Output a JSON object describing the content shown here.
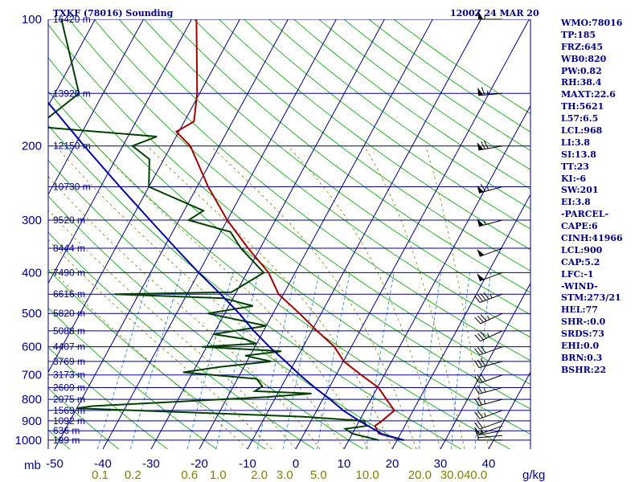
{
  "header": {
    "station": "TXKF (78016) Sounding",
    "time": "1200Z 24 MAR 20"
  },
  "indices": [
    "WMO:78016",
    "TP:185",
    "FRZ:645",
    "WB0:820",
    "PW:0.82",
    "RH:38.4",
    "MAXT:22.6",
    "TH:5621",
    "L57:6.5",
    "LCL:968",
    "LI:3.8",
    "SI:13.8",
    "TT:23",
    "KI:-6",
    "SW:201",
    "EI:3.8",
    "-PARCEL-",
    "CAPE:6",
    "CINH:41966",
    "LCL:900",
    "CAP:5.2",
    "LFC:-1",
    "-WIND-",
    "STM:273/21",
    "HEL:77",
    "SHR-:0.0",
    "SRDS:73",
    "EHI:0.0",
    "BRN:0.3",
    "BSHR:22"
  ],
  "chart_data": {
    "type": "line",
    "title": "TXKF (78016) Sounding",
    "axis_units": {
      "pressure": "mb",
      "mixing_ratio": "g/kg"
    },
    "pressure_ticks": [
      "100",
      "200",
      "300",
      "400",
      "500",
      "600",
      "700",
      "800",
      "900",
      "1000"
    ],
    "pressure_values": [
      100,
      200,
      300,
      400,
      500,
      600,
      700,
      800,
      900,
      1000
    ],
    "temperature_ticks": [
      "-50",
      "-40",
      "-30",
      "-20",
      "-10",
      "0",
      "10",
      "20",
      "30",
      "40"
    ],
    "temperature_values": [
      -50,
      -40,
      -30,
      -20,
      -10,
      0,
      10,
      20,
      30,
      40
    ],
    "mixing_ratio_ticks": [
      "0.1",
      "0.2",
      "0.6",
      "1.0",
      "2.0",
      "3.0",
      "5.0",
      "10.0",
      "20.0",
      "30.0",
      "40.0"
    ],
    "mixing_ratio_values": [
      0.1,
      0.2,
      0.6,
      1.0,
      2.0,
      3.0,
      5.0,
      10.0,
      20.0,
      30.0,
      40.0
    ],
    "height_labels": [
      {
        "p": 100,
        "label": "16420 m"
      },
      {
        "p": 150,
        "label": "13920 m"
      },
      {
        "p": 200,
        "label": "12150 m"
      },
      {
        "p": 250,
        "label": "10730 m"
      },
      {
        "p": 300,
        "label": "9520 m"
      },
      {
        "p": 350,
        "label": "8444 m"
      },
      {
        "p": 400,
        "label": "7490 m"
      },
      {
        "p": 450,
        "label": "6616 m"
      },
      {
        "p": 500,
        "label": "5820 m"
      },
      {
        "p": 550,
        "label": "5088 m"
      },
      {
        "p": 600,
        "label": "4407 m"
      },
      {
        "p": 650,
        "label": "3769 m"
      },
      {
        "p": 700,
        "label": "3173 m"
      },
      {
        "p": 750,
        "label": "2609 m"
      },
      {
        "p": 800,
        "label": "2075 m"
      },
      {
        "p": 850,
        "label": "1569 m"
      },
      {
        "p": 900,
        "label": "1092 m"
      },
      {
        "p": 950,
        "label": "636 m"
      },
      {
        "p": 1000,
        "label": "199 m"
      }
    ],
    "series": [
      {
        "kind": "temperature",
        "color": "#a00000",
        "points": [
          {
            "p": 1000,
            "t": 21.4
          },
          {
            "p": 965,
            "t": 15.5
          },
          {
            "p": 925,
            "t": 13.8
          },
          {
            "p": 900,
            "t": 14.7
          },
          {
            "p": 850,
            "t": 16.1
          },
          {
            "p": 800,
            "t": 13.2
          },
          {
            "p": 750,
            "t": 10.2
          },
          {
            "p": 700,
            "t": 5.2
          },
          {
            "p": 650,
            "t": 0.1
          },
          {
            "p": 600,
            "t": -3.5
          },
          {
            "p": 550,
            "t": -8.9
          },
          {
            "p": 500,
            "t": -14.5
          },
          {
            "p": 450,
            "t": -21.0
          },
          {
            "p": 400,
            "t": -25.5
          },
          {
            "p": 350,
            "t": -32.5
          },
          {
            "p": 300,
            "t": -40.0
          },
          {
            "p": 250,
            "t": -47.7
          },
          {
            "p": 200,
            "t": -56.0
          },
          {
            "p": 185,
            "t": -60.5
          },
          {
            "p": 175,
            "t": -58.0
          },
          {
            "p": 150,
            "t": -60.5
          },
          {
            "p": 100,
            "t": -69.0
          }
        ]
      },
      {
        "kind": "dewpoint",
        "color": "#004000",
        "points": [
          {
            "p": 1000,
            "t": 16.2
          },
          {
            "p": 965,
            "t": 10.0
          },
          {
            "p": 940,
            "t": 8.0
          },
          {
            "p": 925,
            "t": 12.0
          },
          {
            "p": 900,
            "t": 11.0
          },
          {
            "p": 880,
            "t": -2.0
          },
          {
            "p": 860,
            "t": -25.0
          },
          {
            "p": 840,
            "t": -50.0
          },
          {
            "p": 830,
            "t": -47.0
          },
          {
            "p": 790,
            "t": -12.0
          },
          {
            "p": 775,
            "t": -3.0
          },
          {
            "p": 765,
            "t": -15.0
          },
          {
            "p": 745,
            "t": -14.0
          },
          {
            "p": 715,
            "t": -16.0
          },
          {
            "p": 690,
            "t": -32.0
          },
          {
            "p": 670,
            "t": -25.0
          },
          {
            "p": 650,
            "t": -15.0
          },
          {
            "p": 630,
            "t": -21.0
          },
          {
            "p": 615,
            "t": -14.0
          },
          {
            "p": 600,
            "t": -31.0
          },
          {
            "p": 590,
            "t": -20.0
          },
          {
            "p": 575,
            "t": -23.0
          },
          {
            "p": 560,
            "t": -30.0
          },
          {
            "p": 535,
            "t": -20.0
          },
          {
            "p": 500,
            "t": -33.5
          },
          {
            "p": 480,
            "t": -25.0
          },
          {
            "p": 460,
            "t": -32.0
          },
          {
            "p": 450,
            "t": -55.0
          },
          {
            "p": 445,
            "t": -31.0
          },
          {
            "p": 400,
            "t": -26.5
          },
          {
            "p": 350,
            "t": -34.0
          },
          {
            "p": 320,
            "t": -38.0
          },
          {
            "p": 300,
            "t": -48.0
          },
          {
            "p": 285,
            "t": -46.0
          },
          {
            "p": 250,
            "t": -60.0
          },
          {
            "p": 215,
            "t": -63.0
          },
          {
            "p": 200,
            "t": -68.0
          },
          {
            "p": 190,
            "t": -64.0
          },
          {
            "p": 180,
            "t": -90.0
          },
          {
            "p": 150,
            "t": -85.0
          },
          {
            "p": 100,
            "t": -97.0
          }
        ]
      },
      {
        "kind": "parcel",
        "color": "#0000a0",
        "points": [
          {
            "p": 1000,
            "t": 21.4
          },
          {
            "p": 968,
            "t": 16.3
          },
          {
            "p": 900,
            "t": 10.0
          },
          {
            "p": 850,
            "t": 5.5
          },
          {
            "p": 800,
            "t": 1.5
          },
          {
            "p": 750,
            "t": -3.0
          },
          {
            "p": 700,
            "t": -7.5
          },
          {
            "p": 650,
            "t": -12.0
          },
          {
            "p": 600,
            "t": -17.0
          },
          {
            "p": 550,
            "t": -22.0
          },
          {
            "p": 500,
            "t": -27.0
          },
          {
            "p": 450,
            "t": -33.0
          },
          {
            "p": 400,
            "t": -40.0
          },
          {
            "p": 350,
            "t": -47.5
          },
          {
            "p": 300,
            "t": -56.0
          },
          {
            "p": 250,
            "t": -66.0
          },
          {
            "p": 200,
            "t": -78.0
          },
          {
            "p": 150,
            "t": -93.0
          },
          {
            "p": 120,
            "t": -106.0
          }
        ]
      }
    ],
    "wind_barbs": [
      {
        "p": 1000,
        "dir": 270,
        "spd": 5
      },
      {
        "p": 975,
        "dir": 265,
        "spd": 10
      },
      {
        "p": 950,
        "dir": 260,
        "spd": 15
      },
      {
        "p": 925,
        "dir": 250,
        "spd": 15
      },
      {
        "p": 900,
        "dir": 250,
        "spd": 20
      },
      {
        "p": 850,
        "dir": 250,
        "spd": 25
      },
      {
        "p": 800,
        "dir": 255,
        "spd": 25
      },
      {
        "p": 750,
        "dir": 255,
        "spd": 25
      },
      {
        "p": 700,
        "dir": 250,
        "spd": 30
      },
      {
        "p": 650,
        "dir": 255,
        "spd": 30
      },
      {
        "p": 600,
        "dir": 250,
        "spd": 30
      },
      {
        "p": 550,
        "dir": 245,
        "spd": 35
      },
      {
        "p": 500,
        "dir": 245,
        "spd": 35
      },
      {
        "p": 450,
        "dir": 250,
        "spd": 45
      },
      {
        "p": 400,
        "dir": 250,
        "spd": 50
      },
      {
        "p": 350,
        "dir": 250,
        "spd": 50
      },
      {
        "p": 300,
        "dir": 255,
        "spd": 55
      },
      {
        "p": 250,
        "dir": 255,
        "spd": 65
      },
      {
        "p": 200,
        "dir": 260,
        "spd": 70
      },
      {
        "p": 150,
        "dir": 265,
        "spd": 65
      },
      {
        "p": 100,
        "dir": 270,
        "spd": 55
      }
    ]
  }
}
